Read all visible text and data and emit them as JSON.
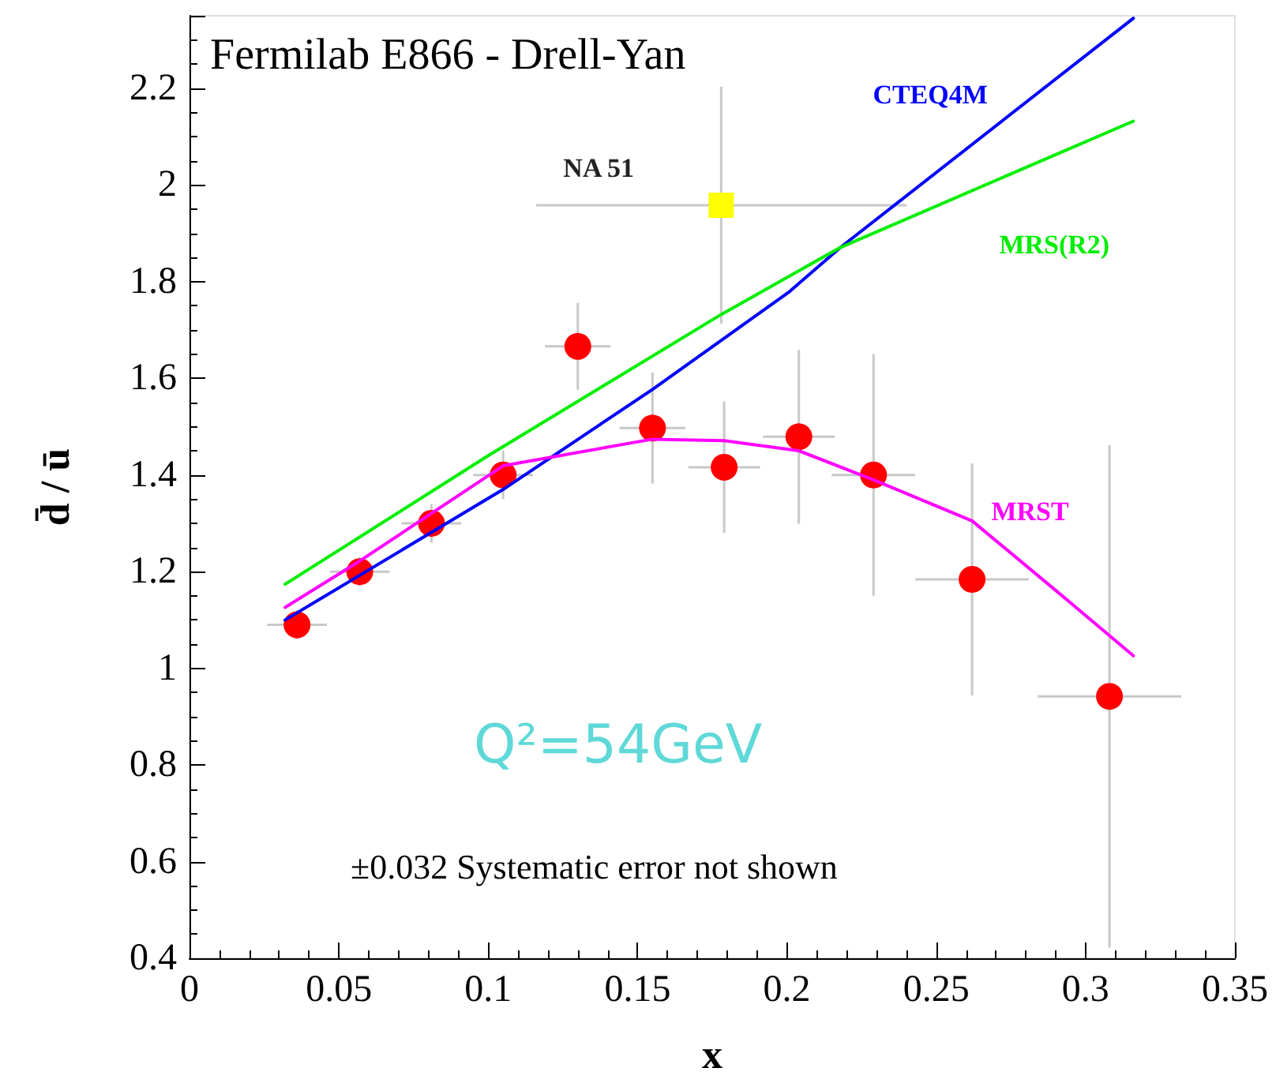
{
  "chart_data": {
    "type": "scatter",
    "title": "Fermilab E866 - Drell-Yan",
    "xlabel": "x",
    "ylabel": "d̄ / ū",
    "xlim": [
      0,
      0.35
    ],
    "xticks": [
      0,
      0.05,
      0.1,
      0.15,
      0.2,
      0.25,
      0.3,
      0.35
    ],
    "ylim": [
      0.4,
      2.35
    ],
    "yticks": [
      0.4,
      0.6,
      0.8,
      1,
      1.2,
      1.4,
      1.6,
      1.8,
      2,
      2.2
    ],
    "grid": false,
    "legend": false,
    "annotations": [
      "Q²=54GeV",
      "±0.032 Systematic error not shown"
    ],
    "series": [
      {
        "marker": "circle",
        "color": "#ff0000",
        "x": [
          0.036,
          0.057,
          0.081,
          0.105,
          0.13,
          0.155,
          0.179,
          0.204,
          0.229,
          0.262,
          0.308
        ],
        "values": [
          1.09,
          1.2,
          1.3,
          1.4,
          1.666,
          1.497,
          1.416,
          1.479,
          1.4,
          1.184,
          0.942
        ],
        "errors": [
          0.03,
          0.03,
          0.04,
          0.05,
          0.09,
          0.115,
          0.136,
          0.18,
          0.25,
          0.24,
          0.52
        ],
        "xerrors": [
          0.01,
          0.01,
          0.01,
          0.01,
          0.011,
          0.011,
          0.012,
          0.012,
          0.014,
          0.019,
          0.024
        ]
      },
      {
        "name": "NA 51",
        "marker": "square",
        "color": "#ffff00",
        "x": [
          0.178
        ],
        "values": [
          1.958
        ],
        "errors": [
          0.245
        ],
        "xerrors": [
          0.062
        ]
      },
      {
        "type": "line",
        "name": "CTEQ4M",
        "marker": "none",
        "color": "#0000ff",
        "x": [
          0.032,
          0.105,
          0.155,
          0.201,
          0.218,
          0.316
        ],
        "values": [
          1.1,
          1.37,
          1.577,
          1.78,
          1.871,
          2.345
        ]
      },
      {
        "type": "line",
        "name": "MRS(R2)",
        "marker": "none",
        "color": "#00ee00",
        "x": [
          0.032,
          0.1,
          0.178,
          0.218,
          0.316
        ],
        "values": [
          1.174,
          1.44,
          1.732,
          1.871,
          2.132
        ]
      },
      {
        "type": "line",
        "name": "MRST",
        "marker": "none",
        "color": "#ff00ff",
        "x": [
          0.032,
          0.057,
          0.105,
          0.155,
          0.179,
          0.204,
          0.229,
          0.262,
          0.291,
          0.316
        ],
        "values": [
          1.126,
          1.222,
          1.419,
          1.474,
          1.471,
          1.45,
          1.39,
          1.305,
          1.156,
          1.026
        ]
      }
    ]
  }
}
